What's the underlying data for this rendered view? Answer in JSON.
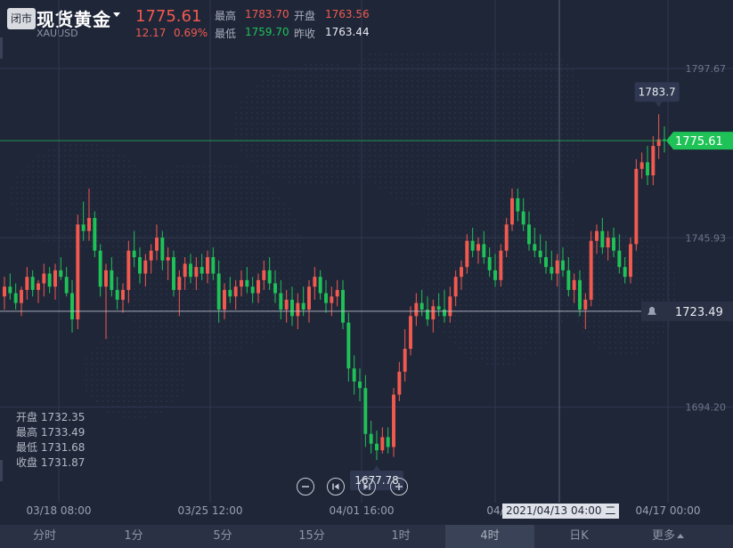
{
  "header": {
    "closed_badge": "闭市",
    "name": "现货黄金",
    "code": "XAUUSD",
    "price": "1775.61",
    "change": "12.17",
    "change_pct": "0.69%",
    "high_label": "最高",
    "high": "1783.70",
    "open_label": "开盘",
    "open": "1763.56",
    "low_label": "最低",
    "low": "1759.70",
    "prev_label": "昨收",
    "prev": "1763.44"
  },
  "ohlc_info": {
    "open": "开盘 1732.35",
    "high": "最高 1733.49",
    "low": "最低 1731.68",
    "close": "收盘 1731.87"
  },
  "crosshair_date": "2021/04/13 04:00 二",
  "periods": [
    "分时",
    "1分",
    "5分",
    "15分",
    "1时",
    "4时",
    "日K",
    "更多"
  ],
  "active_period": "4时",
  "colors": {
    "up": "#f25a4f",
    "down": "#1fc257",
    "background": "#1f2638"
  },
  "chart_data": {
    "type": "candlestick",
    "ylim": [
      1665,
      1805
    ],
    "ytick_labels": [
      "1797.67",
      "1745.93",
      "1694.20"
    ],
    "yticks": [
      1797.67,
      1745.93,
      1694.2
    ],
    "xtick_labels": [
      "03/18 08:00",
      "03/25 12:00",
      "04/01 16:00",
      "04/",
      "04/17 00:00"
    ],
    "last_price_label": "1775.61",
    "alert_price_label": "1723.49",
    "max_label": "1783.7",
    "min_label": "1677.78",
    "candles": [
      [
        1728,
        1734,
        1724,
        1731
      ],
      [
        1731,
        1735,
        1727,
        1729
      ],
      [
        1729,
        1732,
        1724,
        1726
      ],
      [
        1726,
        1731,
        1722,
        1730
      ],
      [
        1730,
        1737,
        1727,
        1734
      ],
      [
        1734,
        1736,
        1728,
        1730
      ],
      [
        1730,
        1733,
        1726,
        1732
      ],
      [
        1732,
        1738,
        1728,
        1735
      ],
      [
        1735,
        1737,
        1729,
        1731
      ],
      [
        1731,
        1738,
        1727,
        1736
      ],
      [
        1736,
        1740,
        1733,
        1734
      ],
      [
        1734,
        1737,
        1728,
        1729
      ],
      [
        1729,
        1733,
        1717,
        1721
      ],
      [
        1721,
        1753,
        1718,
        1750
      ],
      [
        1750,
        1757,
        1745,
        1748
      ],
      [
        1748,
        1761,
        1745,
        1752
      ],
      [
        1752,
        1754,
        1740,
        1742
      ],
      [
        1742,
        1744,
        1728,
        1731
      ],
      [
        1731,
        1738,
        1715,
        1736
      ],
      [
        1736,
        1740,
        1728,
        1730
      ],
      [
        1730,
        1734,
        1724,
        1727
      ],
      [
        1727,
        1732,
        1723,
        1730
      ],
      [
        1730,
        1745,
        1726,
        1742
      ],
      [
        1742,
        1748,
        1737,
        1740
      ],
      [
        1740,
        1743,
        1732,
        1735
      ],
      [
        1735,
        1741,
        1731,
        1739
      ],
      [
        1739,
        1744,
        1735,
        1742
      ],
      [
        1742,
        1750,
        1739,
        1746
      ],
      [
        1746,
        1748,
        1736,
        1739
      ],
      [
        1739,
        1743,
        1733,
        1740
      ],
      [
        1740,
        1742,
        1728,
        1730
      ],
      [
        1730,
        1736,
        1722,
        1734
      ],
      [
        1734,
        1740,
        1730,
        1738
      ],
      [
        1738,
        1741,
        1732,
        1734
      ],
      [
        1734,
        1740,
        1730,
        1737
      ],
      [
        1737,
        1741,
        1733,
        1735
      ],
      [
        1735,
        1742,
        1732,
        1740
      ],
      [
        1740,
        1743,
        1733,
        1735
      ],
      [
        1735,
        1739,
        1720,
        1724
      ],
      [
        1724,
        1732,
        1721,
        1730
      ],
      [
        1730,
        1734,
        1726,
        1728
      ],
      [
        1728,
        1733,
        1724,
        1731
      ],
      [
        1731,
        1736,
        1728,
        1733
      ],
      [
        1733,
        1737,
        1729,
        1731
      ],
      [
        1731,
        1734,
        1726,
        1729
      ],
      [
        1729,
        1735,
        1726,
        1733
      ],
      [
        1733,
        1739,
        1730,
        1736
      ],
      [
        1736,
        1740,
        1730,
        1732
      ],
      [
        1732,
        1736,
        1726,
        1729
      ],
      [
        1729,
        1733,
        1721,
        1724
      ],
      [
        1724,
        1730,
        1720,
        1727
      ],
      [
        1727,
        1731,
        1719,
        1722
      ],
      [
        1722,
        1729,
        1718,
        1726
      ],
      [
        1726,
        1731,
        1722,
        1724
      ],
      [
        1724,
        1733,
        1720,
        1731
      ],
      [
        1731,
        1737,
        1727,
        1734
      ],
      [
        1734,
        1736,
        1727,
        1729
      ],
      [
        1729,
        1733,
        1723,
        1726
      ],
      [
        1726,
        1731,
        1722,
        1728
      ],
      [
        1728,
        1733,
        1725,
        1730
      ],
      [
        1730,
        1733,
        1718,
        1720
      ],
      [
        1720,
        1723,
        1702,
        1706
      ],
      [
        1706,
        1710,
        1698,
        1702
      ],
      [
        1702,
        1706,
        1696,
        1700
      ],
      [
        1700,
        1704,
        1682,
        1686
      ],
      [
        1686,
        1690,
        1680,
        1683
      ],
      [
        1683,
        1687,
        1678,
        1681
      ],
      [
        1681,
        1688,
        1680,
        1685
      ],
      [
        1685,
        1688,
        1680,
        1682
      ],
      [
        1682,
        1700,
        1679,
        1698
      ],
      [
        1698,
        1708,
        1696,
        1705
      ],
      [
        1705,
        1718,
        1702,
        1712
      ],
      [
        1712,
        1725,
        1710,
        1722
      ],
      [
        1722,
        1729,
        1719,
        1726
      ],
      [
        1726,
        1730,
        1722,
        1724
      ],
      [
        1724,
        1728,
        1719,
        1721
      ],
      [
        1721,
        1727,
        1717,
        1725
      ],
      [
        1725,
        1729,
        1722,
        1724
      ],
      [
        1724,
        1730,
        1720,
        1722
      ],
      [
        1722,
        1731,
        1720,
        1728
      ],
      [
        1728,
        1736,
        1725,
        1734
      ],
      [
        1734,
        1739,
        1730,
        1737
      ],
      [
        1737,
        1747,
        1735,
        1745
      ],
      [
        1745,
        1749,
        1740,
        1742
      ],
      [
        1742,
        1746,
        1738,
        1744
      ],
      [
        1744,
        1748,
        1738,
        1740
      ],
      [
        1740,
        1743,
        1734,
        1736
      ],
      [
        1736,
        1741,
        1731,
        1733
      ],
      [
        1733,
        1744,
        1731,
        1742
      ],
      [
        1742,
        1752,
        1740,
        1750
      ],
      [
        1750,
        1761,
        1748,
        1758
      ],
      [
        1758,
        1761,
        1751,
        1754
      ],
      [
        1754,
        1758,
        1748,
        1750
      ],
      [
        1750,
        1754,
        1742,
        1744
      ],
      [
        1744,
        1749,
        1740,
        1742
      ],
      [
        1742,
        1747,
        1738,
        1740
      ],
      [
        1740,
        1745,
        1735,
        1737
      ],
      [
        1737,
        1742,
        1733,
        1735
      ],
      [
        1735,
        1741,
        1731,
        1739
      ],
      [
        1739,
        1743,
        1734,
        1736
      ],
      [
        1736,
        1740,
        1728,
        1730
      ],
      [
        1730,
        1735,
        1726,
        1733
      ],
      [
        1733,
        1736,
        1722,
        1724
      ],
      [
        1724,
        1729,
        1718,
        1727
      ],
      [
        1727,
        1748,
        1725,
        1745
      ],
      [
        1745,
        1750,
        1741,
        1748
      ],
      [
        1748,
        1752,
        1741,
        1743
      ],
      [
        1743,
        1748,
        1739,
        1746
      ],
      [
        1746,
        1749,
        1740,
        1742
      ],
      [
        1742,
        1747,
        1735,
        1737
      ],
      [
        1737,
        1740,
        1732,
        1734
      ],
      [
        1734,
        1746,
        1732,
        1744
      ],
      [
        1744,
        1770,
        1742,
        1767
      ],
      [
        1767,
        1772,
        1764,
        1769
      ],
      [
        1769,
        1774,
        1762,
        1765
      ],
      [
        1765,
        1777,
        1762,
        1774
      ],
      [
        1774,
        1783.7,
        1770,
        1776
      ],
      [
        1776,
        1780,
        1772,
        1775.61
      ]
    ]
  }
}
